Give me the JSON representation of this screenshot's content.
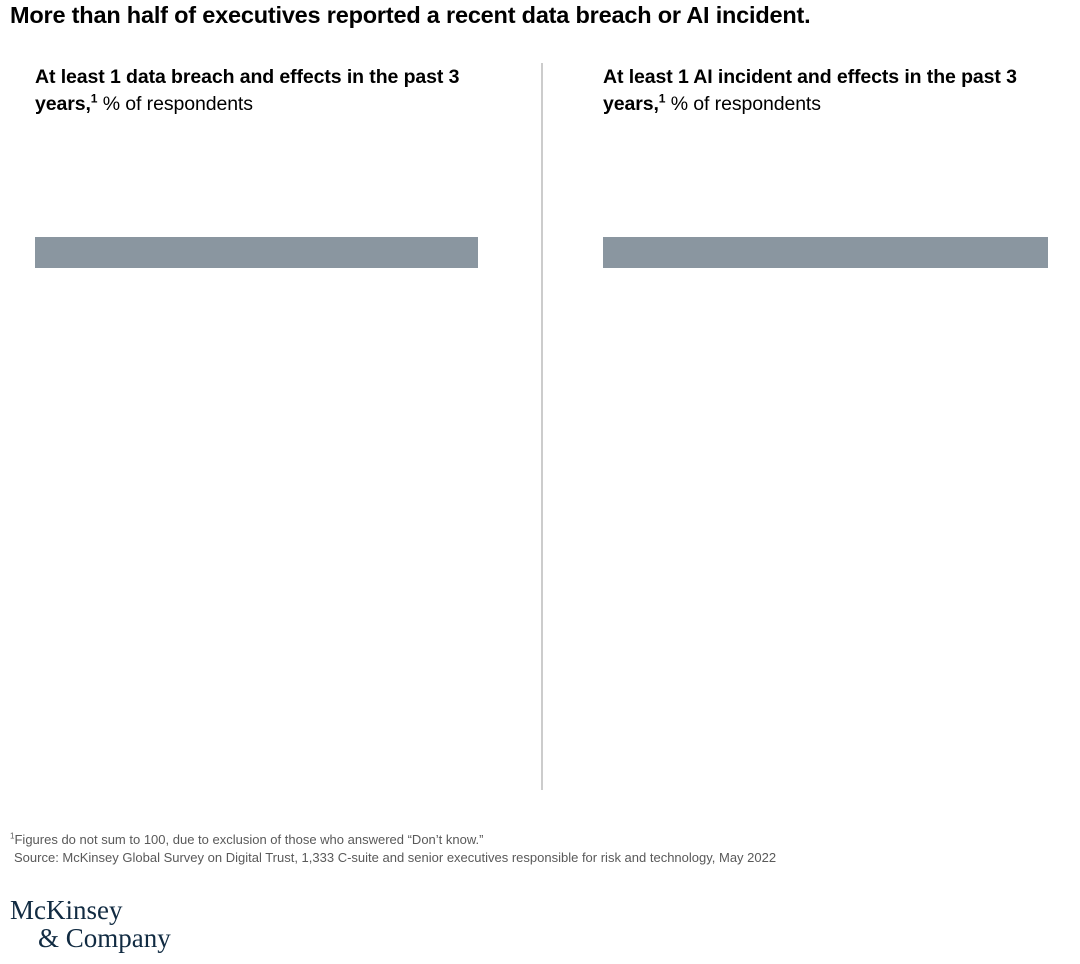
{
  "title": "More than half of executives reported a recent data breach or AI incident.",
  "panels": [
    {
      "heading_bold": "At least 1 data breach and effects in the past 3 years,",
      "heading_sup": "1",
      "heading_regular": " % of respondents",
      "bar_value_label": ""
    },
    {
      "heading_bold": "At least 1 AI incident and effects in the past 3 years,",
      "heading_sup": "1",
      "heading_regular": " % of respondents",
      "bar_value_label": ""
    }
  ],
  "footnotes": {
    "note_sup": "1",
    "note_text": "Figures do not sum to 100, due to exclusion of those who answered “Don’t know.”",
    "source_text": "Source: McKinsey Global Survey on Digital Trust, 1,333 C-suite and senior executives responsible for risk and technology, May 2022"
  },
  "logo": {
    "line1": "McKinsey",
    "line2": "& Company"
  },
  "colors": {
    "bar": "#8A96A0",
    "heading_text": "#000000",
    "footnote_text": "#595959",
    "logo_navy": "#112B42",
    "divider": "#CCCCCC",
    "background": "#FFFFFF"
  },
  "chart_data": [
    {
      "type": "bar",
      "orientation": "horizontal",
      "title": "At least 1 data breach and effects in the past 3 years, % of respondents",
      "categories": [
        ""
      ],
      "values": [
        100
      ],
      "value_labels_visible": false,
      "bar_color": "#8A96A0",
      "axis": "hidden",
      "note": "Single unlabeled gray bar spanning the full plot width; no axis ticks or data labels are rendered in this frame."
    },
    {
      "type": "bar",
      "orientation": "horizontal",
      "title": "At least 1 AI incident and effects in the past 3 years, % of respondents",
      "categories": [
        ""
      ],
      "values": [
        100
      ],
      "value_labels_visible": false,
      "bar_color": "#8A96A0",
      "axis": "hidden",
      "note": "Single unlabeled gray bar spanning the full plot width; no axis ticks or data labels are rendered in this frame."
    }
  ]
}
